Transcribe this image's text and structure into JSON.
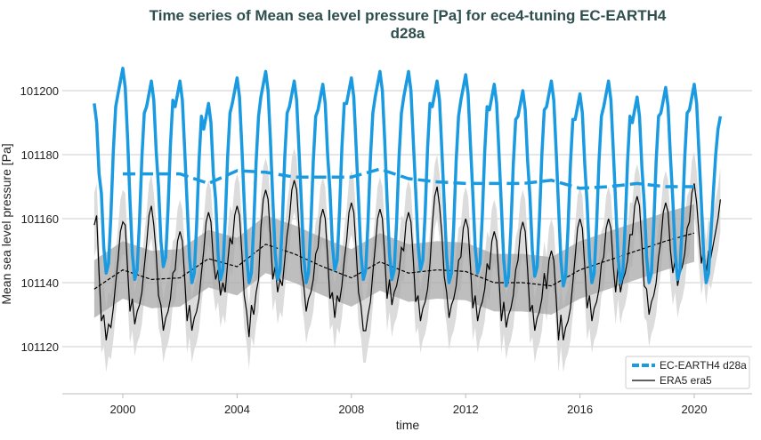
{
  "chart_data": {
    "type": "line",
    "title_lines": [
      "Time series of Mean sea level pressure [Pa] for ece4-tuning EC-EARTH4",
      "d28a"
    ],
    "xlabel": "time",
    "ylabel": "Mean sea level pressure [Pa]",
    "xlim": [
      1997.9,
      2022.2
    ],
    "ylim": [
      101106,
      101213
    ],
    "xticks": [
      2000,
      2004,
      2008,
      2012,
      2016,
      2020
    ],
    "yticks": [
      101120,
      101140,
      101160,
      101180,
      101200
    ],
    "grid": "horizontal",
    "legend_placement": "lower-right",
    "colors": {
      "model": "#1a9ae0",
      "era5": "#000000",
      "era5_band_light": "#dcdcdc",
      "era5_band_dark": "#a8a8a8"
    },
    "monthly_start_year": 1999,
    "series": [
      {
        "name": "EC-EARTH4 d28a",
        "legend_label": "EC-EARTH4 d28a",
        "monthly": [
          [
            101196,
            101190,
            101174,
            101168,
            101151,
            101143,
            101146,
            101161,
            101181,
            101195,
            101199,
            101203
          ],
          [
            101207,
            101201,
            101185,
            101166,
            101149,
            101141,
            101144,
            101159,
            101179,
            101193,
            101195,
            101199
          ],
          [
            101203,
            101197,
            101181,
            101170,
            101153,
            101145,
            101148,
            101163,
            101183,
            101197,
            101195,
            101199
          ],
          [
            101203,
            101197,
            101181,
            101165,
            101148,
            101140,
            101143,
            101158,
            101178,
            101192,
            101188,
            101192
          ],
          [
            101196,
            101190,
            101174,
            101166,
            101149,
            101141,
            101144,
            101159,
            101179,
            101193,
            101196,
            101200
          ],
          [
            101204,
            101198,
            101182,
            101165,
            101148,
            101140,
            101143,
            101158,
            101178,
            101192,
            101198,
            101202
          ],
          [
            101206,
            101200,
            101184,
            101166,
            101149,
            101141,
            101144,
            101159,
            101179,
            101193,
            101195,
            101199
          ],
          [
            101203,
            101197,
            101181,
            101165,
            101148,
            101140,
            101143,
            101158,
            101178,
            101192,
            101194,
            101198
          ],
          [
            101202,
            101196,
            101180,
            101169,
            101152,
            101144,
            101147,
            101162,
            101182,
            101196,
            101196,
            101200
          ],
          [
            101204,
            101198,
            101182,
            101166,
            101149,
            101141,
            101144,
            101159,
            101179,
            101193,
            101198,
            101202
          ],
          [
            101206,
            101200,
            101184,
            101166,
            101149,
            101141,
            101144,
            101159,
            101179,
            101193,
            101198,
            101202
          ],
          [
            101206,
            101200,
            101184,
            101169,
            101152,
            101144,
            101147,
            101162,
            101182,
            101196,
            101195,
            101199
          ],
          [
            101203,
            101197,
            101181,
            101165,
            101148,
            101140,
            101143,
            101158,
            101178,
            101192,
            101197,
            101201
          ],
          [
            101205,
            101199,
            101183,
            101168,
            101151,
            101143,
            101146,
            101161,
            101181,
            101195,
            101194,
            101198
          ],
          [
            101202,
            101196,
            101180,
            101164,
            101147,
            101139,
            101142,
            101157,
            101177,
            101191,
            101192,
            101196
          ],
          [
            101200,
            101194,
            101178,
            101167,
            101150,
            101142,
            101145,
            101160,
            101180,
            101194,
            101195,
            101199
          ],
          [
            101203,
            101197,
            101181,
            101164,
            101147,
            101139,
            101142,
            101157,
            101177,
            101191,
            101191,
            101195
          ],
          [
            101199,
            101193,
            101177,
            101165,
            101148,
            101140,
            101143,
            101158,
            101178,
            101192,
            101195,
            101199
          ],
          [
            101203,
            101197,
            101181,
            101165,
            101148,
            101140,
            101143,
            101158,
            101178,
            101192,
            101190,
            101194
          ],
          [
            101198,
            101192,
            101176,
            101165,
            101148,
            101140,
            101143,
            101158,
            101178,
            101192,
            101193,
            101197
          ],
          [
            101201,
            101195,
            101179,
            101166,
            101149,
            101141,
            101144,
            101159,
            101179,
            101193,
            101194,
            101198
          ],
          [
            101202,
            101196,
            101180,
            101165,
            101148,
            101140,
            101143,
            101155,
            101168,
            101180,
            101188,
            101192
          ]
        ],
        "running_mean": {
          "years": [
            2000,
            2001,
            2002,
            2003,
            2004,
            2005,
            2006,
            2007,
            2008,
            2009,
            2010,
            2011,
            2012,
            2013,
            2014,
            2015,
            2016,
            2017,
            2018,
            2019,
            2020
          ],
          "values": [
            101174,
            101174,
            101174,
            101171,
            101175,
            101174.5,
            101173,
            101173,
            101173,
            101175.5,
            101172.5,
            101171.5,
            101171,
            101171,
            101171,
            101172,
            101169.5,
            101170,
            101171,
            101170,
            101170
          ]
        }
      },
      {
        "name": "ERA5 era5",
        "legend_label": "ERA5 era5",
        "monthly": [
          [
            101158,
            101161,
            101143,
            101128,
            101130,
            101122,
            101127,
            101126,
            101132,
            101140,
            101147,
            101156
          ],
          [
            101159,
            101158,
            101144,
            101131,
            101135,
            101127,
            101131,
            101133,
            101137,
            101145,
            101152,
            101161
          ],
          [
            101164,
            101158,
            101149,
            101136,
            101133,
            101125,
            101129,
            101131,
            101135,
            101143,
            101144,
            101153
          ],
          [
            101156,
            101153,
            101141,
            101128,
            101133,
            101125,
            101129,
            101131,
            101135,
            101143,
            101150,
            101159
          ],
          [
            101162,
            101159,
            101147,
            101141,
            101144,
            101136,
            101140,
            101137,
            101146,
            101154,
            101152,
            101161
          ],
          [
            101164,
            101161,
            101149,
            101136,
            101131,
            101123,
            101133,
            101130,
            101137,
            101141,
            101157,
            101166
          ],
          [
            101169,
            101166,
            101154,
            101141,
            101145,
            101137,
            101141,
            101139,
            101147,
            101155,
            101160,
            101169
          ],
          [
            101172,
            101169,
            101157,
            101144,
            101139,
            101131,
            101135,
            101137,
            101141,
            101149,
            101151,
            101160
          ],
          [
            101163,
            101160,
            101148,
            101135,
            101137,
            101129,
            101136,
            101134,
            101139,
            101147,
            101153,
            101162
          ],
          [
            101165,
            101162,
            101150,
            101137,
            101133,
            101125,
            101125,
            101130,
            101134,
            101143,
            101151,
            101160
          ],
          [
            101163,
            101160,
            101148,
            101135,
            101141,
            101133,
            101137,
            101139,
            101143,
            101151,
            101150,
            101159
          ],
          [
            101162,
            101159,
            101147,
            101134,
            101136,
            101128,
            101132,
            101134,
            101138,
            101146,
            101158,
            101167
          ],
          [
            101170,
            101164,
            101155,
            101142,
            101137,
            101129,
            101133,
            101135,
            101139,
            101147,
            101148,
            101157
          ],
          [
            101160,
            101157,
            101145,
            101132,
            101136,
            101128,
            101132,
            101134,
            101138,
            101146,
            101144,
            101153
          ],
          [
            101156,
            101153,
            101141,
            101128,
            101134,
            101126,
            101130,
            101132,
            101136,
            101144,
            101147,
            101156
          ],
          [
            101159,
            101156,
            101144,
            101131,
            101133,
            101125,
            101129,
            101131,
            101135,
            101143,
            101138,
            101147
          ],
          [
            101150,
            101147,
            101135,
            101122,
            101130,
            101122,
            101126,
            101128,
            101132,
            101140,
            101148,
            101157
          ],
          [
            101160,
            101157,
            101145,
            101132,
            101136,
            101128,
            101132,
            101134,
            101138,
            101146,
            101148,
            101157
          ],
          [
            101160,
            101157,
            101145,
            101137,
            101145,
            101137,
            101141,
            101143,
            101147,
            101155,
            101155,
            101164
          ],
          [
            101167,
            101164,
            101152,
            101139,
            101138,
            101130,
            101134,
            101136,
            101140,
            101148,
            101153,
            101162
          ],
          [
            101165,
            101162,
            101150,
            101143,
            101147,
            101139,
            101143,
            101145,
            101149,
            101157,
            101159,
            101168
          ],
          [
            101171,
            101165,
            101155,
            101146,
            101151,
            101143,
            101150,
            101148,
            101152,
            101156,
            101160,
            101166
          ]
        ],
        "monthly_band_halfwidth": 10,
        "running_mean": {
          "years": [
            1999,
            2000,
            2001,
            2002,
            2003,
            2004,
            2005,
            2006,
            2007,
            2008,
            2009,
            2010,
            2011,
            2012,
            2013,
            2014,
            2015,
            2016,
            2017,
            2018,
            2019,
            2020
          ],
          "values": [
            101138,
            101144,
            101141,
            101141.5,
            101147.5,
            101145,
            101152,
            101149,
            101145,
            101141.5,
            101146.5,
            101143,
            101144,
            101143.5,
            101140,
            101140,
            101139,
            101144,
            101147,
            101150,
            101153,
            101155.5
          ]
        },
        "running_mean_band_halfwidth": 9
      }
    ]
  }
}
